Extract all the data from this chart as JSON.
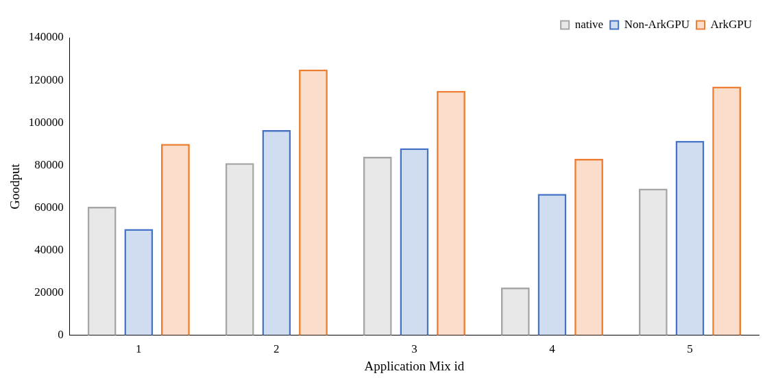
{
  "chart_data": {
    "type": "bar",
    "xlabel": "Application Mix id",
    "ylabel": "Goodput",
    "categories": [
      "1",
      "2",
      "3",
      "4",
      "5"
    ],
    "series": [
      {
        "name": "native",
        "color": "#a5a5a5",
        "values": [
          60500,
          81000,
          84000,
          22500,
          69000
        ]
      },
      {
        "name": "Non-ArkGPU",
        "color": "#4472c4",
        "values": [
          50000,
          96500,
          88000,
          66500,
          91500
        ]
      },
      {
        "name": "ArkGPU",
        "color": "#ed7d31",
        "values": [
          90000,
          125000,
          115000,
          83000,
          117000
        ]
      }
    ],
    "ylim": [
      0,
      140000
    ],
    "yticks": [
      0,
      20000,
      40000,
      60000,
      80000,
      100000,
      120000,
      140000
    ],
    "grid": false,
    "legend": "top right"
  }
}
